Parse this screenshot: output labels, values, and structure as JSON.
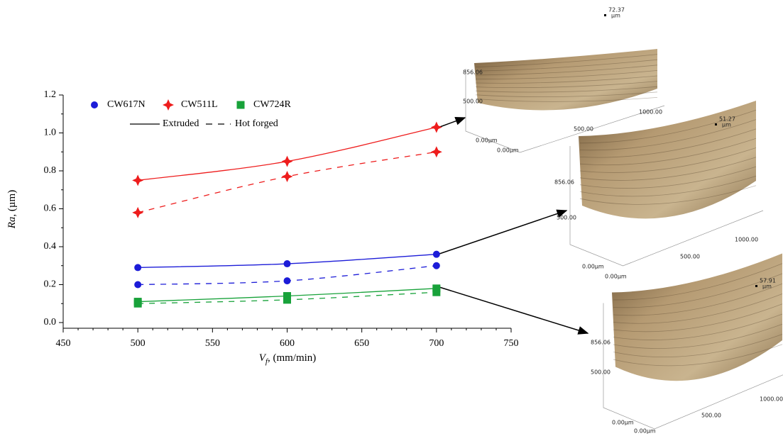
{
  "chart_data": {
    "type": "line",
    "x_label": {
      "symbol": "V",
      "subscript": "f",
      "unit": ", (mm/min)"
    },
    "y_label": {
      "symbol": "Ra",
      "unit": ", (µm)"
    },
    "x": [
      500,
      600,
      700
    ],
    "xlim": [
      450,
      750
    ],
    "xticks": [
      450,
      500,
      550,
      600,
      650,
      700,
      750
    ],
    "ylim": [
      -0.03,
      1.2
    ],
    "yticks": [
      {
        "value": 0,
        "label": "0.0"
      },
      0.2,
      0.4,
      0.6,
      0.8,
      {
        "value": 1,
        "label": "1.0"
      },
      1.2
    ],
    "line_styles": [
      "Extruded",
      "Hot forged"
    ],
    "series": [
      {
        "name": "CW617N",
        "color": "#1c1cd8",
        "marker": "circle",
        "values": [
          0.29,
          0.31,
          0.36
        ],
        "values_hot_forged": [
          0.2,
          0.22,
          0.3
        ]
      },
      {
        "name": "CW511L",
        "color": "#ee1c1c",
        "marker": "star",
        "values": [
          0.75,
          0.85,
          1.03
        ],
        "values_hot_forged": [
          0.58,
          0.77,
          0.9
        ]
      },
      {
        "name": "CW724R",
        "color": "#18a23a",
        "marker": "square",
        "values": [
          0.11,
          0.14,
          0.18
        ],
        "values_hot_forged": [
          0.1,
          0.12,
          0.16
        ]
      }
    ]
  },
  "surfaces": [
    {
      "z_max": "72.37",
      "z_unit": "µm",
      "y_max": "856.06",
      "y_mid": "500.00",
      "x_max": "1000.00",
      "x_mid": "500.00",
      "origin_y": "0.00µm",
      "origin_x": "0.00µm"
    },
    {
      "z_max": "51.27",
      "z_unit": "µm",
      "y_max": "856.06",
      "y_mid": "500.00",
      "x_max": "1000.00",
      "x_mid": "500.00",
      "origin_y": "0.00µm",
      "origin_x": "0.00µm"
    },
    {
      "z_max": "57.91",
      "z_unit": "µm",
      "y_max": "856.06",
      "y_mid": "500.00",
      "x_max": "1000.00",
      "x_mid": "500.00",
      "origin_y": "0.00µm",
      "origin_x": "0.00µm"
    }
  ]
}
